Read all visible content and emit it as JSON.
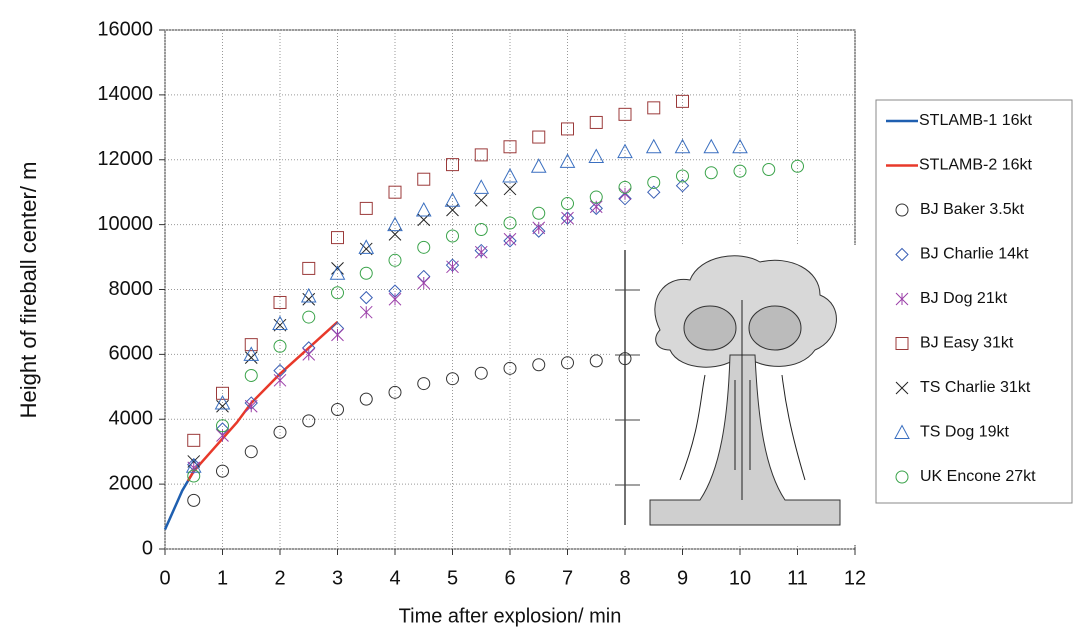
{
  "chart_data": {
    "type": "scatter",
    "x_label": "Time after explosion/ min",
    "y_label": "Height of fireball center/ m",
    "xlim": [
      0,
      12
    ],
    "xticks": [
      0,
      1,
      2,
      3,
      4,
      5,
      6,
      7,
      8,
      9,
      10,
      11,
      12
    ],
    "ylim": [
      0,
      16000
    ],
    "yticks": [
      0,
      2000,
      4000,
      6000,
      8000,
      10000,
      12000,
      14000,
      16000
    ],
    "grid": true,
    "series": [
      {
        "name": "STLAMB-1 16kt",
        "color": "#1f5fb0",
        "marker": "line",
        "x": [
          0,
          0.1,
          0.2,
          0.3,
          0.4,
          0.5,
          0.6
        ],
        "values": [
          600,
          1000,
          1400,
          1800,
          2100,
          2400,
          2600
        ]
      },
      {
        "name": "STLAMB-2 16kt",
        "color": "#e8392a",
        "marker": "line",
        "x": [
          0.4,
          0.5,
          0.75,
          1,
          1.25,
          1.5,
          2,
          2.5,
          3
        ],
        "values": [
          2100,
          2400,
          2900,
          3400,
          3900,
          4500,
          5400,
          6200,
          7000
        ]
      },
      {
        "name": "BJ Baker 3.5kt",
        "color": "#333333",
        "marker": "circle",
        "x": [
          0.5,
          1,
          1.5,
          2,
          2.5,
          3,
          3.5,
          4,
          4.5,
          5,
          5.5,
          6,
          6.5,
          7,
          7.5,
          8
        ],
        "values": [
          1500,
          2400,
          3000,
          3600,
          3950,
          4300,
          4620,
          4830,
          5100,
          5250,
          5420,
          5570,
          5680,
          5740,
          5800,
          5870
        ]
      },
      {
        "name": "BJ Charlie 14kt",
        "color": "#3a5fb5",
        "marker": "diamond",
        "x": [
          0.5,
          1,
          1.5,
          2,
          2.5,
          3,
          3.5,
          4,
          4.5,
          5,
          5.5,
          6,
          6.5,
          7,
          7.5,
          8,
          8.5,
          9
        ],
        "values": [
          2600,
          3700,
          4500,
          5500,
          6200,
          6800,
          7750,
          7950,
          8400,
          8750,
          9200,
          9500,
          9800,
          10200,
          10500,
          10800,
          11000,
          11200
        ]
      },
      {
        "name": "BJ Dog 21kt",
        "color": "#9b3fa8",
        "marker": "star",
        "x": [
          0.5,
          1,
          1.5,
          2,
          2.5,
          3,
          3.5,
          4,
          4.5,
          5,
          5.5,
          6,
          6.5,
          7,
          7.5,
          8
        ],
        "values": [
          2500,
          3500,
          4400,
          5200,
          6000,
          6600,
          7300,
          7700,
          8200,
          8700,
          9150,
          9550,
          9900,
          10200,
          10550,
          10950
        ]
      },
      {
        "name": "BJ Easy 31kt",
        "color": "#9b3a3a",
        "marker": "square",
        "x": [
          0.5,
          1,
          1.5,
          2,
          2.5,
          3,
          3.5,
          4,
          4.5,
          5,
          5.5,
          6,
          6.5,
          7,
          7.5,
          8,
          8.5,
          9
        ],
        "values": [
          3350,
          4800,
          6300,
          7600,
          8650,
          9600,
          10500,
          11000,
          11400,
          11850,
          12150,
          12400,
          12700,
          12950,
          13150,
          13400,
          13600,
          13800
        ]
      },
      {
        "name": "TS Charlie 31kt",
        "color": "#222222",
        "marker": "x",
        "x": [
          0.5,
          1,
          1.5,
          2,
          2.5,
          3,
          3.5,
          4,
          4.5,
          5,
          5.5,
          6
        ],
        "values": [
          2700,
          4400,
          5900,
          6900,
          7700,
          8650,
          9250,
          9700,
          10150,
          10450,
          10750,
          11100
        ]
      },
      {
        "name": "TS Dog 19kt",
        "color": "#3a6fc0",
        "marker": "triangle",
        "x": [
          0.5,
          1,
          1.5,
          2,
          2.5,
          3,
          3.5,
          4,
          4.5,
          5,
          5.5,
          6,
          6.5,
          7,
          7.5,
          8,
          8.5,
          9,
          9.5,
          10
        ],
        "values": [
          2550,
          4500,
          6000,
          6950,
          7800,
          8500,
          9300,
          10000,
          10450,
          10750,
          11150,
          11500,
          11800,
          11950,
          12100,
          12250,
          12400,
          12400,
          12400,
          12400
        ]
      },
      {
        "name": "UK Encone 27kt",
        "color": "#3aa34a",
        "marker": "circle",
        "x": [
          0.5,
          1,
          1.5,
          2,
          2.5,
          3,
          3.5,
          4,
          4.5,
          5,
          5.5,
          6,
          6.5,
          7,
          7.5,
          8,
          8.5,
          9,
          9.5,
          10,
          10.5,
          11
        ],
        "values": [
          2250,
          3800,
          5350,
          6250,
          7150,
          7900,
          8500,
          8900,
          9300,
          9650,
          9850,
          10050,
          10350,
          10650,
          10850,
          11150,
          11300,
          11500,
          11600,
          11650,
          11700,
          11800
        ]
      }
    ]
  }
}
